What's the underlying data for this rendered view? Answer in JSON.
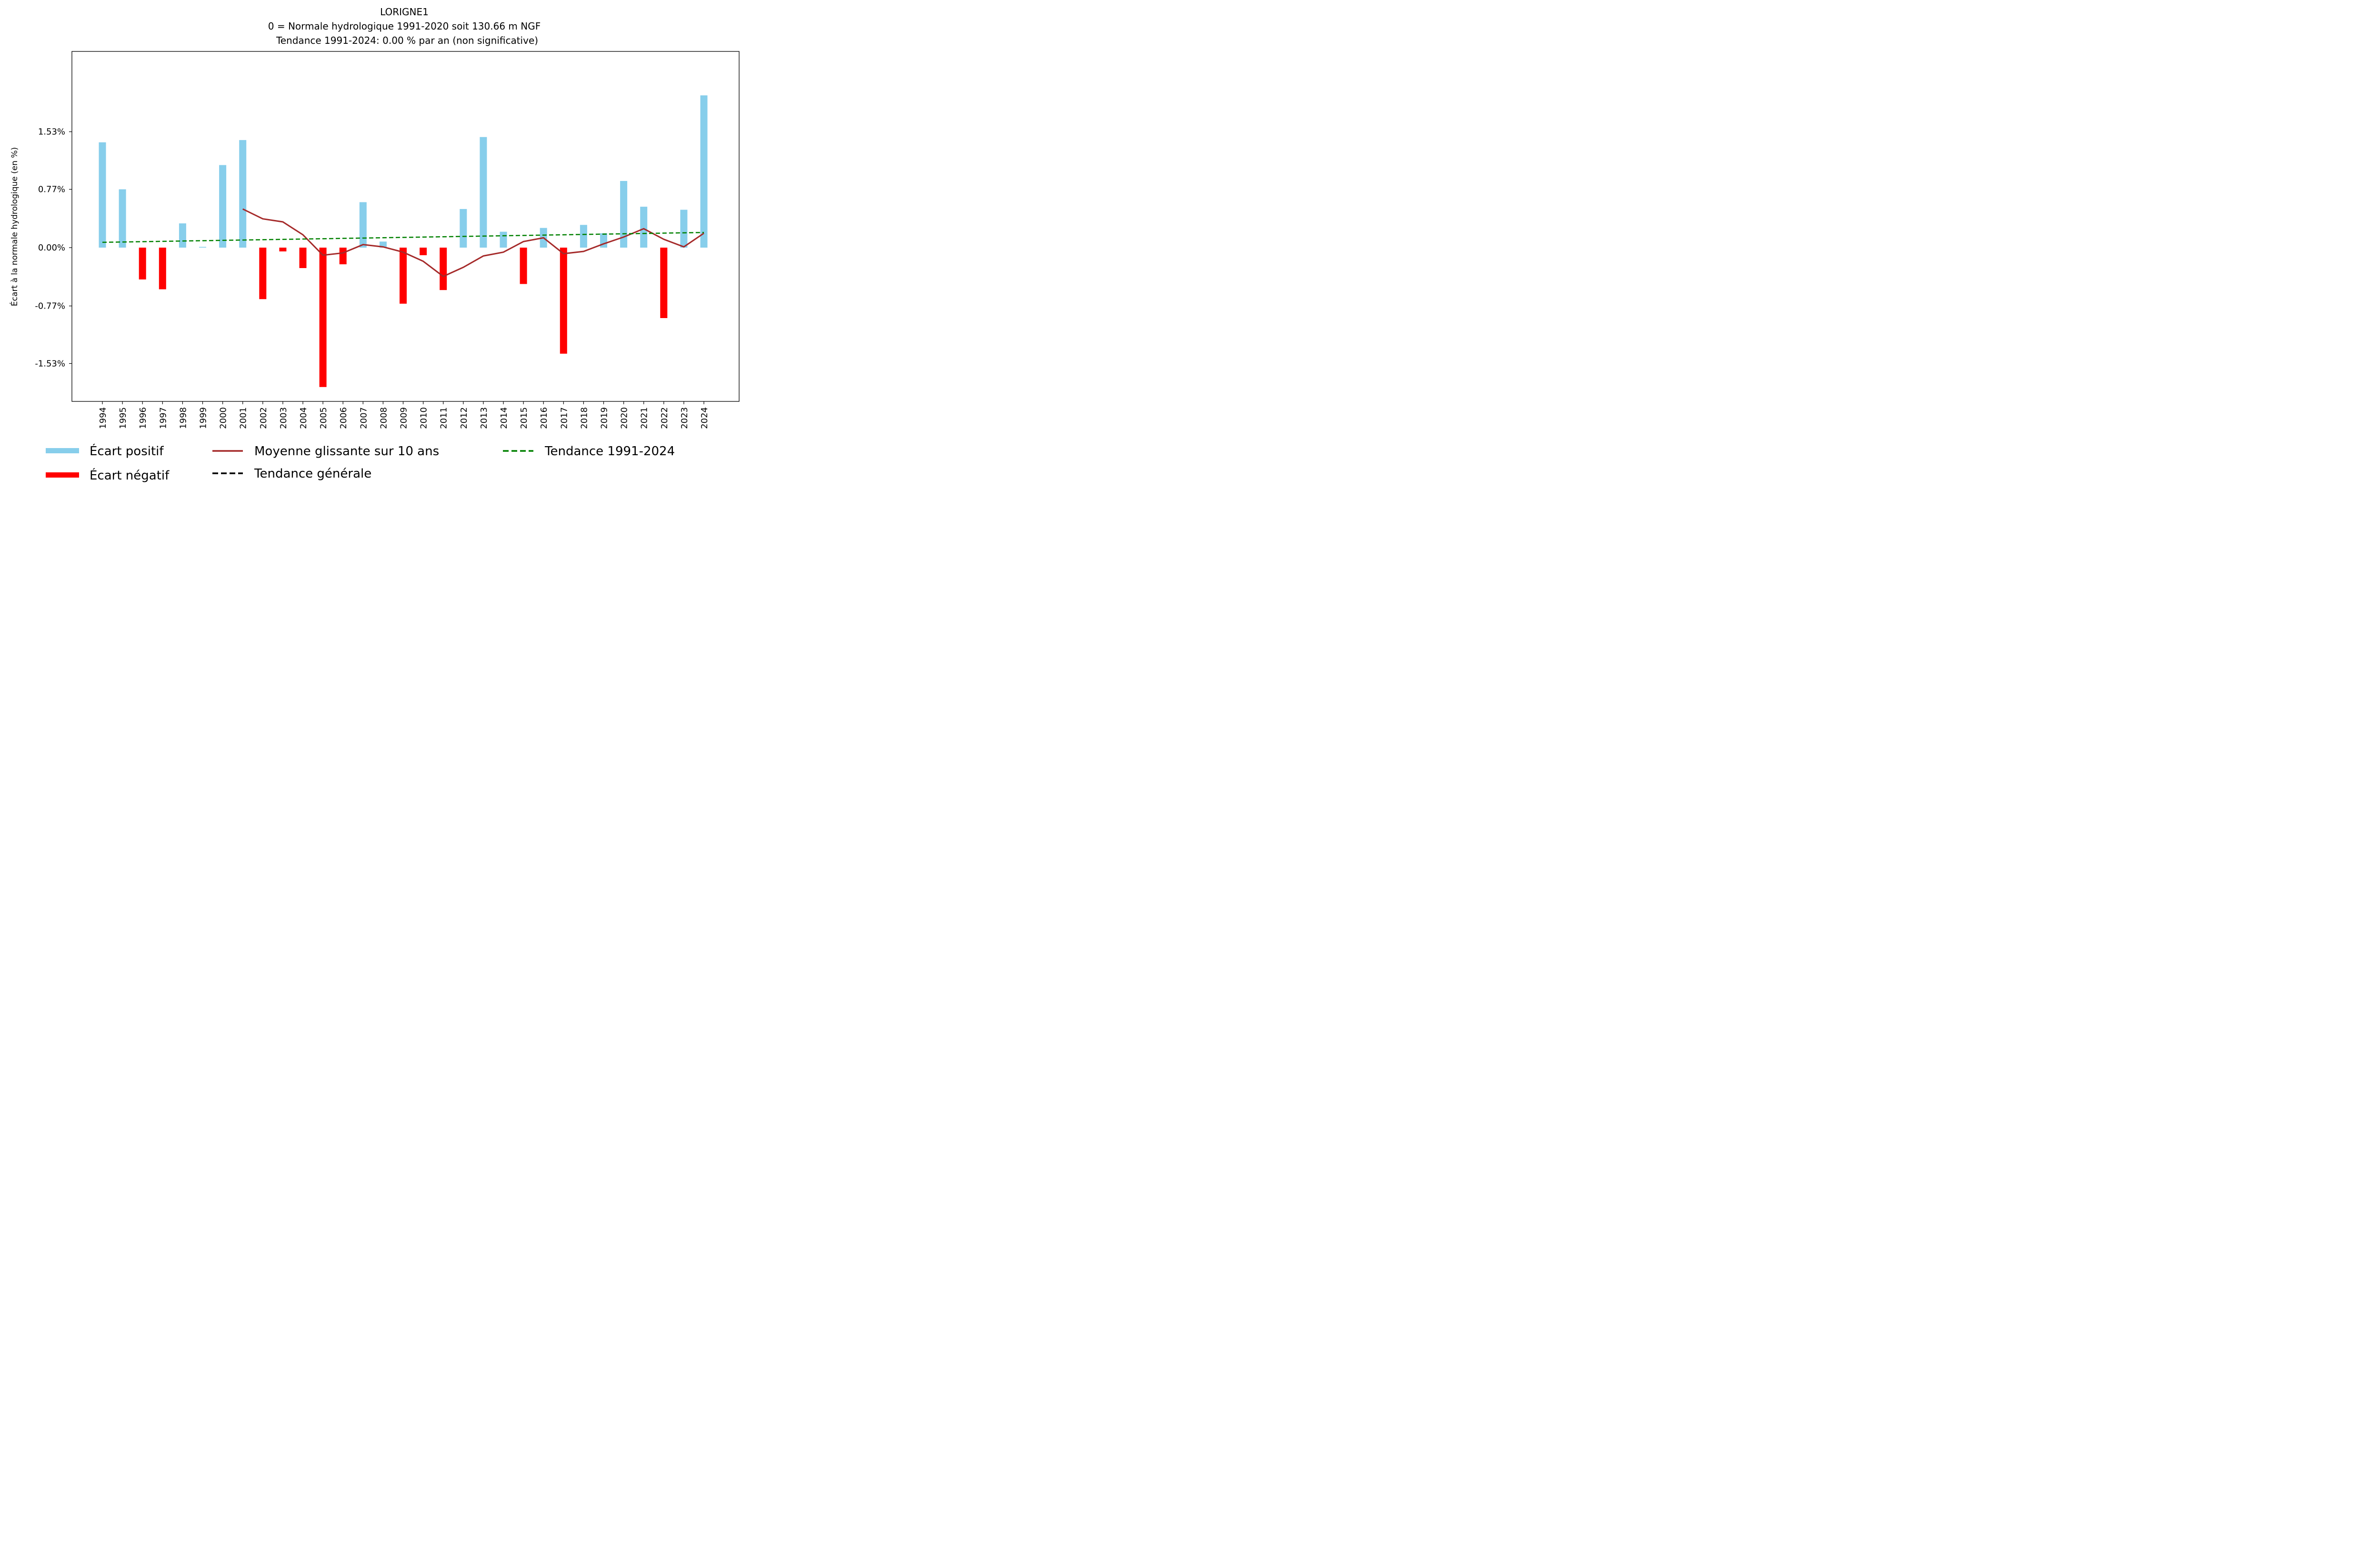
{
  "chart_data": {
    "type": "bar",
    "title": "LORIGNE1",
    "subtitle_lines": [
      "0 = Normale hydrologique 1991-2020 soit 130.66 m NGF",
      "Tendance 1991-2024: 0.00 % par an (non significative)"
    ],
    "xlabel": "",
    "ylabel": "Écart à la normale hydrologique (en %)",
    "ylim": [
      -2.03,
      2.59
    ],
    "yticks": [
      -1.53,
      -0.77,
      0.0,
      0.77,
      1.53
    ],
    "ytick_labels": [
      "-1.53%",
      "-0.77%",
      "0.00%",
      "0.77%",
      "1.53%"
    ],
    "grid": false,
    "legend_position": "bottom",
    "categories": [
      "1994",
      "1995",
      "1996",
      "1997",
      "1998",
      "1999",
      "2000",
      "2001",
      "2002",
      "2003",
      "2004",
      "2005",
      "2006",
      "2007",
      "2008",
      "2009",
      "2010",
      "2011",
      "2012",
      "2013",
      "2014",
      "2015",
      "2016",
      "2017",
      "2018",
      "2019",
      "2020",
      "2021",
      "2022",
      "2023",
      "2024"
    ],
    "values": [
      1.39,
      0.77,
      -0.42,
      -0.55,
      0.32,
      0.01,
      1.09,
      1.42,
      -0.68,
      -0.05,
      -0.27,
      -1.84,
      -0.22,
      0.6,
      0.08,
      -0.74,
      -0.1,
      -0.56,
      0.51,
      1.46,
      0.21,
      -0.48,
      0.26,
      -1.4,
      0.3,
      0.19,
      0.88,
      0.54,
      -0.93,
      0.5,
      2.01
    ],
    "series": [
      {
        "name": "Moyenne glissante sur 10 ans",
        "type": "line",
        "x": [
          "2001",
          "2002",
          "2003",
          "2004",
          "2005",
          "2006",
          "2007",
          "2008",
          "2009",
          "2010",
          "2011",
          "2012",
          "2013",
          "2014",
          "2015",
          "2016",
          "2017",
          "2018",
          "2019",
          "2020",
          "2021",
          "2022",
          "2023",
          "2024"
        ],
        "values": [
          0.51,
          0.38,
          0.34,
          0.17,
          -0.1,
          -0.07,
          0.04,
          0.01,
          -0.06,
          -0.18,
          -0.38,
          -0.26,
          -0.11,
          -0.06,
          0.08,
          0.13,
          -0.08,
          -0.05,
          0.05,
          0.14,
          0.25,
          0.11,
          0.01,
          0.19
        ],
        "color": "#a52a2a"
      },
      {
        "name": "Tendance 1991-2024",
        "type": "line-dashed",
        "x": [
          "1994",
          "2024"
        ],
        "values": [
          0.07,
          0.2
        ],
        "color": "#008000"
      }
    ],
    "legend": [
      {
        "label": "Écart positif",
        "kind": "patch",
        "color": "#87ceeb"
      },
      {
        "label": "Écart négatif",
        "kind": "patch",
        "color": "#ff0000"
      },
      {
        "label": "Moyenne glissante sur 10 ans",
        "kind": "line",
        "color": "#a52a2a"
      },
      {
        "label": "Tendance générale",
        "kind": "dashed",
        "color": "#000000"
      },
      {
        "label": "Tendance 1991-2024",
        "kind": "dashed",
        "color": "#008000"
      }
    ],
    "colors": {
      "positive": "#87ceeb",
      "negative": "#ff0000"
    }
  }
}
